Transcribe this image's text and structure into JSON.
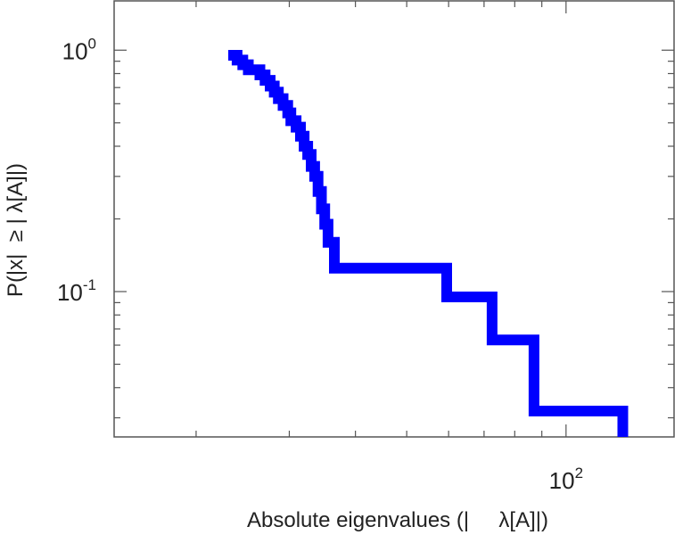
{
  "chart_data": {
    "type": "line",
    "step": true,
    "title": "",
    "xlabel": "Absolute eigenvalues (|     λ[A]|)",
    "ylabel": "P(|x|  ≥ | λ[A]|)",
    "xscale": "log",
    "yscale": "log",
    "xlim": [
      14,
      160
    ],
    "ylim": [
      0.025,
      1.6
    ],
    "grid": false,
    "x_ticks": [
      {
        "base": "10",
        "exp": "2",
        "value": 100
      }
    ],
    "y_ticks": [
      {
        "base": "10",
        "exp": "0",
        "value": 1
      },
      {
        "base": "10",
        "exp": "-1",
        "value": 0.1
      }
    ],
    "series": [
      {
        "color": "#0000ff",
        "x": [
          23.0,
          23.9,
          24.5,
          25.1,
          26.4,
          27.0,
          27.6,
          28.1,
          28.6,
          29.2,
          29.8,
          30.2,
          30.9,
          31.5,
          32.0,
          32.5,
          33.0,
          33.5,
          34.0,
          34.5,
          35.0,
          35.5,
          36.5,
          39.5,
          59.5,
          72.5,
          87.0,
          128.0
        ],
        "y": [
          0.952,
          0.91,
          0.87,
          0.83,
          0.79,
          0.75,
          0.71,
          0.67,
          0.63,
          0.59,
          0.55,
          0.51,
          0.48,
          0.44,
          0.4,
          0.37,
          0.33,
          0.3,
          0.26,
          0.22,
          0.19,
          0.16,
          0.125,
          0.125,
          0.095,
          0.063,
          0.032,
          0.032
        ]
      }
    ]
  }
}
